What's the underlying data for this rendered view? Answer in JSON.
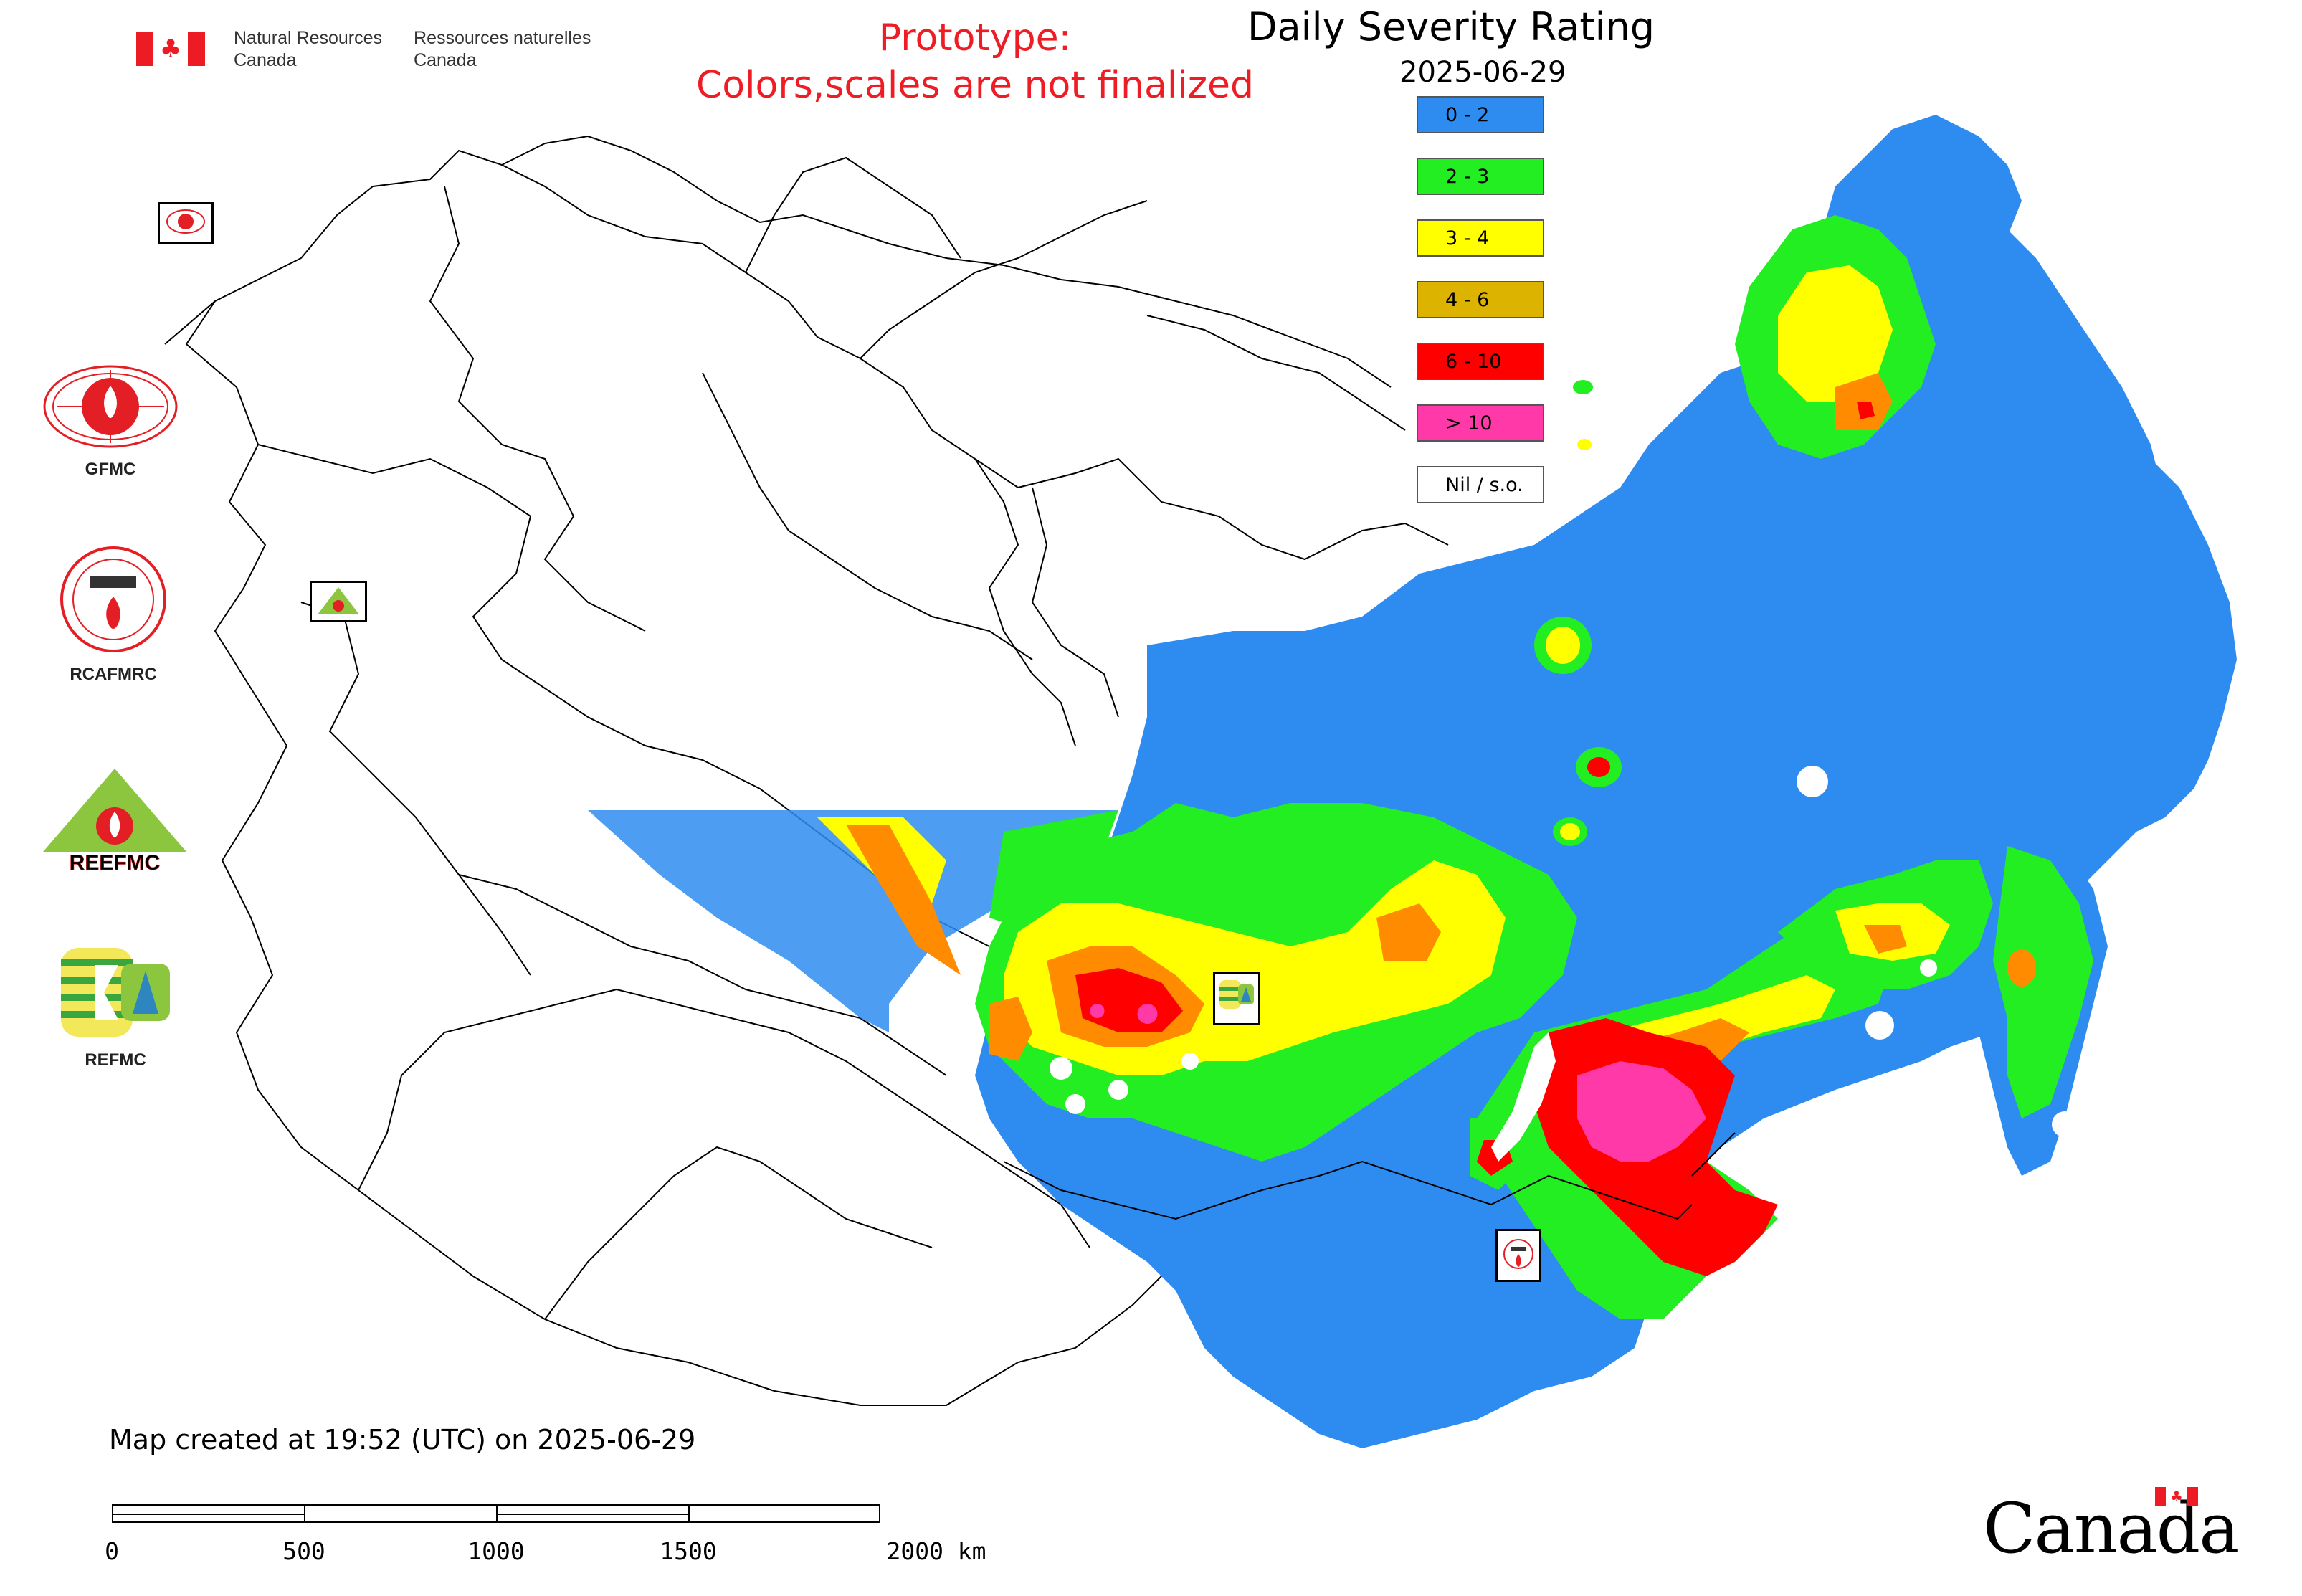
{
  "header": {
    "nrcan_en": [
      "Natural Resources",
      "Canada"
    ],
    "nrcan_fr": [
      "Ressources naturelles",
      "Canada"
    ]
  },
  "prototype_notice": [
    "Prototype:",
    "Colors,scales are not finalized"
  ],
  "legend": {
    "title": "Daily Severity Rating",
    "date": "2025-06-29",
    "items": [
      {
        "label": "0 - 2",
        "color": "#2e8cf0"
      },
      {
        "label": "2 - 3",
        "color": "#22ee22"
      },
      {
        "label": "3 - 4",
        "color": "#ffff00"
      },
      {
        "label": "4 - 6",
        "color": "#dcb400"
      },
      {
        "label": "6 - 10",
        "color": "#ff0000"
      },
      {
        "label": "> 10",
        "color": "#ff3aa8"
      },
      {
        "label": "Nil / s.o.",
        "color": "#ffffff"
      }
    ]
  },
  "side_logos": [
    {
      "caption": "GFMC",
      "icon": "gfmc-logo"
    },
    {
      "caption": "RCAFMRC",
      "icon": "rcafmrc-logo"
    },
    {
      "caption": "",
      "icon": "reefmc-logo",
      "wordmark": "REEFMC"
    },
    {
      "caption": "REFMC",
      "icon": "refmc-logo"
    }
  ],
  "map_markers": [
    {
      "name": "GFMC",
      "icon": "gfmc-marker-icon"
    },
    {
      "name": "REEFMC",
      "icon": "reefmc-marker-icon"
    },
    {
      "name": "REFMC",
      "icon": "refmc-marker-icon"
    },
    {
      "name": "RCAFMRC",
      "icon": "rcafmrc-marker-icon"
    }
  ],
  "created_text": "Map created at 19:52 (UTC) on 2025-06-29",
  "scale_bar": {
    "labels": [
      "0",
      "500",
      "1000",
      "1500",
      "2000 km"
    ]
  },
  "wordmark": "Canada"
}
